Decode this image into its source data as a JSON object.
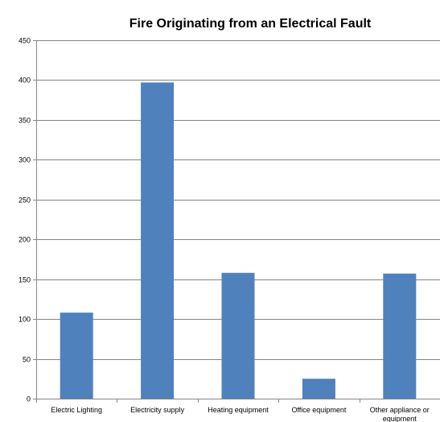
{
  "colors": {
    "bar": "#4f81bd",
    "gridline": "#868686",
    "axis": "#868686",
    "background": "#ffffff"
  },
  "chart_data": {
    "type": "bar",
    "title": "Fire Originating from an Electrical Fault",
    "xlabel": "",
    "ylabel": "",
    "categories": [
      [
        "Electric Lighting"
      ],
      [
        "Electricity supply"
      ],
      [
        "Heating equipment"
      ],
      [
        "Office equipment"
      ],
      [
        "Other appliance or",
        "equipment"
      ]
    ],
    "values": [
      108,
      397,
      158,
      25,
      157
    ],
    "ylim": [
      0,
      450
    ],
    "yticks": [
      "0",
      "50",
      "100",
      "150",
      "200",
      "250",
      "300",
      "350",
      "400",
      "450"
    ],
    "grid": true,
    "legend": "none"
  }
}
